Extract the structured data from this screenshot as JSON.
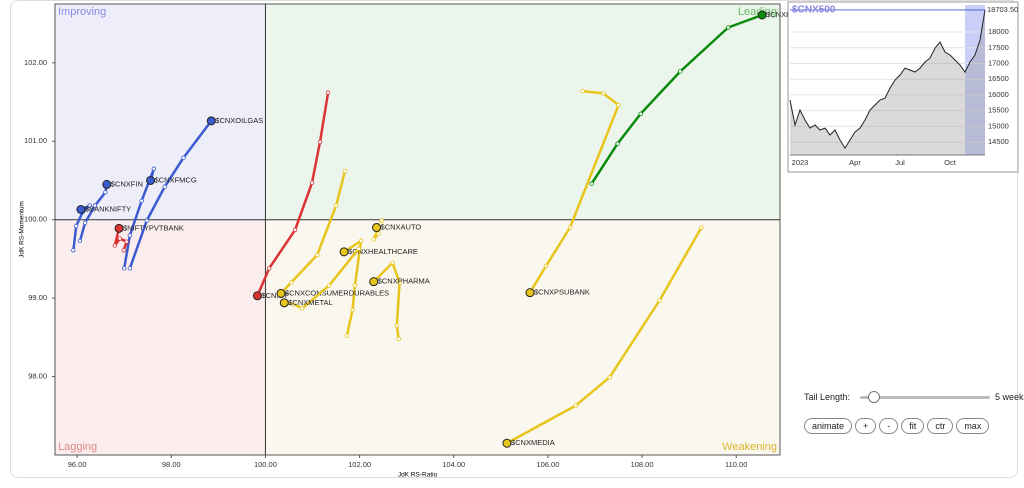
{
  "chart_data": [
    {
      "type": "rrg",
      "x_label": "JdK RS-Ratio",
      "y_label": "JdK RS-Momentum",
      "quadrants": {
        "top_left": "Improving",
        "top_right": "Leading",
        "bottom_left": "Lagging",
        "bottom_right": "Weakening"
      },
      "center_x": 100,
      "center_y": 100,
      "xlim": [
        95.53,
        110.93
      ],
      "ylim": [
        97.0,
        102.75
      ],
      "xticks": [
        {
          "value": 96,
          "label": "96.00"
        },
        {
          "value": 98,
          "label": "98.00"
        },
        {
          "value": 100,
          "label": "100.00"
        },
        {
          "value": 102,
          "label": "102.00"
        },
        {
          "value": 104,
          "label": "104.00"
        },
        {
          "value": 106,
          "label": "106.00"
        },
        {
          "value": 108,
          "label": "108.00"
        },
        {
          "value": 110,
          "label": "110.00"
        }
      ],
      "yticks": [
        {
          "value": 98,
          "label": "98.00"
        },
        {
          "value": 99,
          "label": "99.00"
        },
        {
          "value": 100,
          "label": "100.00"
        },
        {
          "value": 101,
          "label": "101.00"
        },
        {
          "value": 102,
          "label": "102.00"
        }
      ],
      "series": [
        {
          "name": "$CNXREALTY",
          "color": "#0a8a0a",
          "x": [
            106.93,
            107.48,
            107.97,
            108.81,
            109.83,
            110.55
          ],
          "y": [
            100.46,
            100.97,
            101.35,
            101.89,
            102.45,
            102.61
          ]
        },
        {
          "name": "$CNXOILGAS",
          "color": "#3a5ad0",
          "x": [
            97.12,
            97.48,
            97.86,
            98.26,
            98.85
          ],
          "y": [
            99.38,
            99.99,
            100.42,
            100.79,
            101.26
          ]
        },
        {
          "name": "$CNXFMCG",
          "color": "#3a5ad0",
          "x": [
            97.0,
            97.12,
            97.37,
            97.63,
            97.56
          ],
          "y": [
            99.38,
            99.8,
            100.24,
            100.65,
            100.5
          ]
        },
        {
          "name": "$CNXFIN",
          "color": "#3a5ad0",
          "x": [
            96.06,
            96.17,
            96.38,
            96.6,
            96.63
          ],
          "y": [
            99.73,
            99.96,
            100.18,
            100.35,
            100.45
          ]
        },
        {
          "name": "$BANKNIFTY",
          "color": "#3a5ad0",
          "x": [
            95.92,
            95.98,
            96.12,
            96.27,
            96.08
          ],
          "y": [
            99.61,
            99.92,
            100.1,
            100.18,
            100.13
          ]
        },
        {
          "name": "$NIFTYPVTBANK",
          "color": "#dd3333",
          "x": [
            96.99,
            97.05,
            96.91,
            96.8,
            96.89
          ],
          "y": [
            99.61,
            99.72,
            99.76,
            99.67,
            99.89
          ]
        },
        {
          "name": "$CNXIT",
          "color": "#dd3333",
          "x": [
            101.33,
            101.16,
            100.99,
            100.63,
            100.08,
            99.83
          ],
          "y": [
            101.62,
            100.99,
            100.47,
            99.87,
            99.38,
            99.03
          ]
        },
        {
          "name": "$CNXAUTO",
          "color": "#e8c51a",
          "x": [
            102.47,
            102.3,
            102.4,
            102.45,
            102.36
          ],
          "y": [
            99.99,
            99.75,
            99.82,
            99.95,
            99.9
          ]
        },
        {
          "name": "$CNXHEALTHCARE",
          "color": "#e8c51a",
          "x": [
            101.73,
            101.85,
            101.9,
            102.03,
            101.67
          ],
          "y": [
            98.52,
            98.85,
            99.16,
            99.73,
            99.59
          ]
        },
        {
          "name": "$CNXPHARMA",
          "color": "#e8c51a",
          "x": [
            102.83,
            102.79,
            102.85,
            102.7,
            102.3
          ],
          "y": [
            98.48,
            98.65,
            99.2,
            99.45,
            99.21
          ]
        },
        {
          "name": "$CNXCONSUMERDURABLES",
          "color": "#e8c51a",
          "x": [
            101.69,
            101.5,
            101.1,
            100.55,
            100.33
          ],
          "y": [
            100.62,
            100.18,
            99.55,
            99.2,
            99.06
          ]
        },
        {
          "name": "$CNXMETAL",
          "color": "#e8c51a",
          "x": [
            101.98,
            101.35,
            100.78,
            100.6,
            100.4
          ],
          "y": [
            99.63,
            99.16,
            98.87,
            98.92,
            98.94
          ]
        },
        {
          "name": "$CNXPSUBANK",
          "color": "#e8c51a",
          "x": [
            106.74,
            107.18,
            107.5,
            106.47,
            105.96,
            105.62
          ],
          "y": [
            101.64,
            101.61,
            101.46,
            99.9,
            99.41,
            99.07
          ]
        },
        {
          "name": "$CNXMEDIA",
          "color": "#e8c51a",
          "x": [
            109.26,
            108.37,
            107.31,
            106.59,
            105.13
          ],
          "y": [
            99.9,
            98.97,
            97.99,
            97.63,
            97.15
          ]
        }
      ]
    },
    {
      "type": "line",
      "title": "$CNX500",
      "color": "#222222",
      "categories": [
        null,
        null,
        "2023",
        null,
        null,
        null,
        null,
        null,
        null,
        null,
        null,
        null,
        null,
        "Apr",
        null,
        null,
        null,
        null,
        null,
        null,
        null,
        null,
        "Jul",
        null,
        null,
        null,
        null,
        null,
        null,
        null,
        null,
        null,
        "Oct",
        null,
        null,
        null,
        null,
        null,
        null,
        null
      ],
      "values": [
        15838,
        15043,
        15520,
        15202,
        14947,
        15043,
        14884,
        14947,
        14725,
        14884,
        14566,
        14311,
        14566,
        14820,
        14947,
        15202,
        15520,
        15679,
        15838,
        15901,
        16219,
        16474,
        16633,
        16855,
        16792,
        16728,
        16855,
        17046,
        17173,
        17491,
        17682,
        17364,
        17269,
        17110,
        16951,
        16728,
        17046,
        17269,
        17746,
        18703.5
      ],
      "last_price": {
        "value": 18703.5,
        "label": "18703.50"
      },
      "ylim": [
        14090,
        18860
      ],
      "yticks": [
        14500,
        15000,
        15500,
        16000,
        16500,
        17000,
        17500,
        18000
      ]
    }
  ],
  "controls": {
    "tail_length_label": "Tail Length:",
    "tail_length_value": "5 weeks",
    "buttons": [
      "animate",
      "+",
      "-",
      "fit",
      "ctr",
      "max"
    ]
  }
}
